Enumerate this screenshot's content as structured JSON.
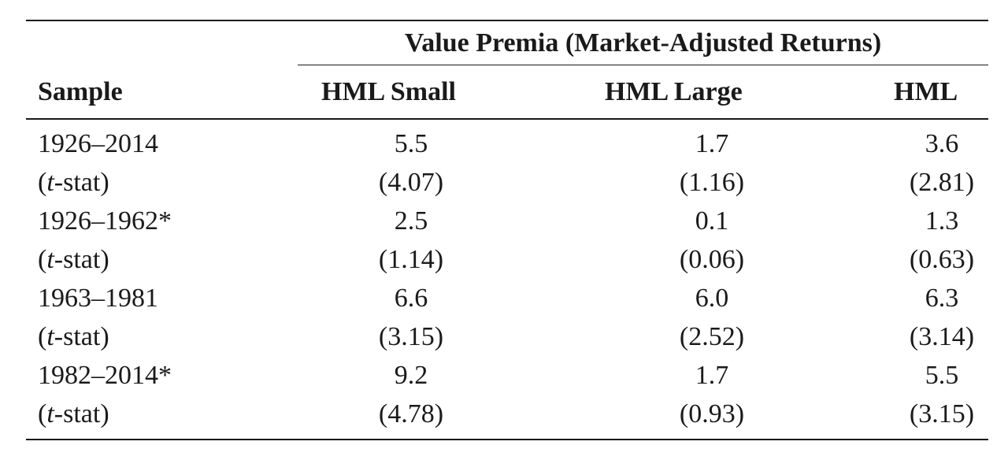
{
  "table": {
    "group_header": "Value Premia (Market-Adjusted Returns)",
    "columns": {
      "sample": "Sample",
      "hml_small": "HML Small",
      "hml_large": "HML Large",
      "hml": "HML"
    },
    "rows": [
      {
        "label": "1926–2014",
        "hml_small": "5.5",
        "hml_large": "1.7",
        "hml": "3.6"
      },
      {
        "label_prefix": "(",
        "label_italic": "t",
        "label_suffix": "-stat)",
        "hml_small": "(4.07)",
        "hml_large": "(1.16)",
        "hml": "(2.81)"
      },
      {
        "label": "1926–1962*",
        "hml_small": "2.5",
        "hml_large": "0.1",
        "hml": "1.3"
      },
      {
        "label_prefix": "(",
        "label_italic": "t",
        "label_suffix": "-stat)",
        "hml_small": "(1.14)",
        "hml_large": "(0.06)",
        "hml": "(0.63)"
      },
      {
        "label": "1963–1981",
        "hml_small": "6.6",
        "hml_large": "6.0",
        "hml": "6.3"
      },
      {
        "label_prefix": "(",
        "label_italic": "t",
        "label_suffix": "-stat)",
        "hml_small": "(3.15)",
        "hml_large": "(2.52)",
        "hml": "(3.14)"
      },
      {
        "label": "1982–2014*",
        "hml_small": "9.2",
        "hml_large": "1.7",
        "hml": "5.5"
      },
      {
        "label_prefix": "(",
        "label_italic": "t",
        "label_suffix": "-stat)",
        "hml_small": "(4.78)",
        "hml_large": "(0.93)",
        "hml": "(3.15)"
      }
    ]
  }
}
